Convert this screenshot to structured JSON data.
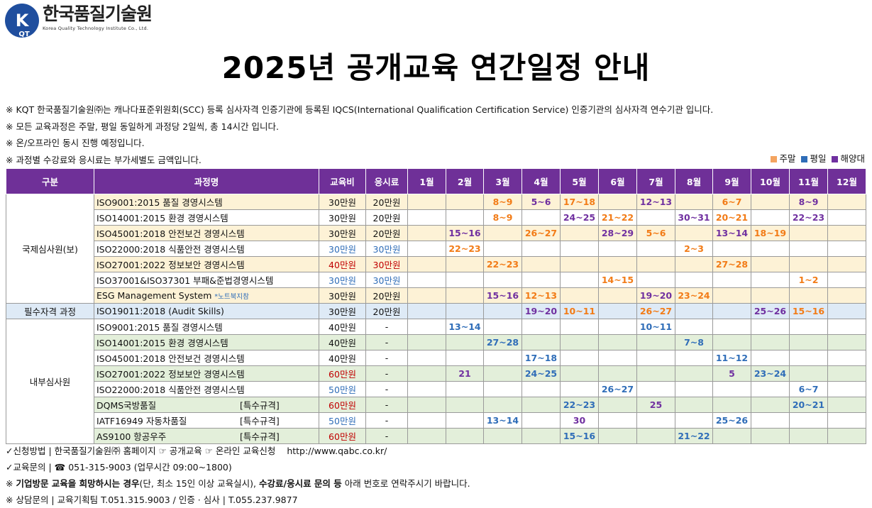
{
  "header": {
    "logo_letters": "KQT",
    "logo_ko": "한국품질기술원",
    "logo_en": "Korea Quality Technology Institute Co., Ltd.",
    "title": "2025년 공개교육 연간일정 안내"
  },
  "notes": [
    "※ KQT 한국품질기술원㈜는 캐나다표준위원회(SCC) 등록 심사자격 인증기관에 등록된 IQCS(International Qualification Certification Service) 인증기관의 심사자격 연수기관 입니다.",
    "※ 모든 교육과정은 주말, 평일 동일하게 과정당 2일씩, 총 14시간 입니다.",
    "※ 온/오프라인 동시 진행 예정입니다.",
    "※ 과정별 수강료와 응시료는 부가세별도 금액입니다."
  ],
  "legend": {
    "weekend": "주말",
    "weekday": "평일",
    "overseas": "해양대",
    "weekend_color": "#f4a460",
    "weekday_color": "#2f6db8",
    "overseas_color": "#7030a0"
  },
  "table": {
    "headers": [
      "구분",
      "과정명",
      "교육비",
      "응시료",
      "1월",
      "2월",
      "3월",
      "4월",
      "5월",
      "6월",
      "7월",
      "8월",
      "9월",
      "10월",
      "11월",
      "12월"
    ],
    "categories": {
      "intl": "국제심사원(보)",
      "req": "필수자격 과정",
      "internal": "내부심사원"
    },
    "rows": [
      {
        "course": "ISO9001:2015 품질 경영시스템",
        "fee": "30만원",
        "exam": "20만원",
        "months": [
          "",
          "",
          "8~9",
          "5~6",
          "17~18",
          "",
          "12~13",
          "",
          "6~7",
          "",
          "8~9",
          ""
        ],
        "styles": [
          "",
          "",
          "we",
          "ov",
          "we",
          "",
          "ov",
          "",
          "we",
          "",
          "ov",
          ""
        ]
      },
      {
        "course": "ISO14001:2015 환경 경영시스템",
        "fee": "30만원",
        "exam": "20만원",
        "months": [
          "",
          "",
          "8~9",
          "",
          "24~25",
          "21~22",
          "",
          "30~31",
          "20~21",
          "",
          "22~23",
          ""
        ],
        "styles": [
          "",
          "",
          "we",
          "",
          "ov",
          "we",
          "",
          "ov",
          "we",
          "",
          "ov",
          ""
        ]
      },
      {
        "course": "ISO45001:2018 안전보건 경영시스템",
        "fee": "30만원",
        "exam": "20만원",
        "months": [
          "",
          "15~16",
          "",
          "26~27",
          "",
          "28~29",
          "5~6",
          "",
          "13~14",
          "18~19",
          "",
          ""
        ],
        "styles": [
          "",
          "ov",
          "",
          "we",
          "",
          "ov",
          "we",
          "",
          "ov",
          "we",
          "",
          ""
        ]
      },
      {
        "course": "ISO22000:2018 식품안전 경영시스템",
        "fee": "30만원",
        "exam": "30만원",
        "months": [
          "",
          "22~23",
          "",
          "",
          "",
          "",
          "",
          "2~3",
          "",
          "",
          "",
          ""
        ],
        "styles": [
          "",
          "we",
          "",
          "",
          "",
          "",
          "",
          "we",
          "",
          "",
          "",
          ""
        ]
      },
      {
        "course": "ISO27001:2022 정보보안 경영시스템",
        "fee": "40만원",
        "exam": "30만원",
        "months": [
          "",
          "",
          "22~23",
          "",
          "",
          "",
          "",
          "",
          "27~28",
          "",
          "",
          ""
        ],
        "styles": [
          "",
          "",
          "we",
          "",
          "",
          "",
          "",
          "",
          "we",
          "",
          "",
          ""
        ]
      },
      {
        "course": "ISO37001&ISO37301 부패&준법경영시스템",
        "fee": "30만원",
        "exam": "30만원",
        "months": [
          "",
          "",
          "",
          "",
          "",
          "14~15",
          "",
          "",
          "",
          "",
          "1~2",
          ""
        ],
        "styles": [
          "",
          "",
          "",
          "",
          "",
          "we",
          "",
          "",
          "",
          "",
          "we",
          ""
        ]
      },
      {
        "course": "ESG Management System",
        "course_note": "*노트북지참",
        "fee": "30만원",
        "exam": "20만원",
        "months": [
          "",
          "",
          "15~16",
          "12~13",
          "",
          "",
          "19~20",
          "23~24",
          "",
          "",
          "",
          ""
        ],
        "styles": [
          "",
          "",
          "ov",
          "we",
          "",
          "",
          "ov",
          "we",
          "",
          "",
          "",
          ""
        ]
      },
      {
        "course": "ISO19011:2018 (Audit Skills)",
        "fee": "30만원",
        "exam": "20만원",
        "months": [
          "",
          "",
          "",
          "19~20",
          "10~11",
          "",
          "26~27",
          "",
          "",
          "25~26",
          "15~16",
          ""
        ],
        "styles": [
          "",
          "",
          "",
          "ov",
          "we",
          "",
          "we",
          "",
          "",
          "ov",
          "we",
          ""
        ]
      },
      {
        "course": "ISO9001:2015 품질 경영시스템",
        "fee": "40만원",
        "exam": "-",
        "months": [
          "",
          "13~14",
          "",
          "",
          "",
          "",
          "10~11",
          "",
          "",
          "",
          "",
          ""
        ],
        "styles": [
          "",
          "wd",
          "",
          "",
          "",
          "",
          "wd",
          "",
          "",
          "",
          "",
          ""
        ]
      },
      {
        "course": "ISO14001:2015 환경 경영시스템",
        "fee": "40만원",
        "exam": "-",
        "months": [
          "",
          "",
          "27~28",
          "",
          "",
          "",
          "",
          "7~8",
          "",
          "",
          "",
          ""
        ],
        "styles": [
          "",
          "",
          "wd",
          "",
          "",
          "",
          "",
          "wd",
          "",
          "",
          "",
          ""
        ]
      },
      {
        "course": "ISO45001:2018 안전보건 경영시스템",
        "fee": "40만원",
        "exam": "-",
        "months": [
          "",
          "",
          "",
          "17~18",
          "",
          "",
          "",
          "",
          "11~12",
          "",
          "",
          ""
        ],
        "styles": [
          "",
          "",
          "",
          "wd",
          "",
          "",
          "",
          "",
          "wd",
          "",
          "",
          ""
        ]
      },
      {
        "course": "ISO27001:2022 정보보안 경영시스템",
        "fee": "60만원",
        "exam": "-",
        "months": [
          "",
          "21",
          "",
          "24~25",
          "",
          "",
          "",
          "",
          "5",
          "23~24",
          "",
          ""
        ],
        "styles": [
          "",
          "ov",
          "",
          "wd",
          "",
          "",
          "",
          "",
          "ov",
          "wd",
          "",
          ""
        ]
      },
      {
        "course": "ISO22000:2018 식품안전 경영시스템",
        "fee": "50만원",
        "exam": "-",
        "months": [
          "",
          "",
          "",
          "",
          "",
          "26~27",
          "",
          "",
          "",
          "",
          "6~7",
          ""
        ],
        "styles": [
          "",
          "",
          "",
          "",
          "",
          "wd",
          "",
          "",
          "",
          "",
          "wd",
          ""
        ]
      },
      {
        "course": "DQMS국방품질",
        "course_tag": "[특수규격]",
        "fee": "60만원",
        "exam": "-",
        "months": [
          "",
          "",
          "",
          "",
          "22~23",
          "",
          "25",
          "",
          "",
          "",
          "20~21",
          ""
        ],
        "styles": [
          "",
          "",
          "",
          "",
          "wd",
          "",
          "ov",
          "",
          "",
          "",
          "wd",
          ""
        ]
      },
      {
        "course": "IATF16949 자동차품질",
        "course_tag": "[특수규격]",
        "fee": "50만원",
        "exam": "-",
        "months": [
          "",
          "",
          "13~14",
          "",
          "30",
          "",
          "",
          "",
          "25~26",
          "",
          "",
          ""
        ],
        "styles": [
          "",
          "",
          "wd",
          "",
          "ov",
          "",
          "",
          "",
          "wd",
          "",
          "",
          ""
        ]
      },
      {
        "course": "AS9100 항공우주",
        "course_tag": "[특수규격]",
        "fee": "60만원",
        "exam": "-",
        "months": [
          "",
          "",
          "",
          "",
          "15~16",
          "",
          "",
          "21~22",
          "",
          "",
          "",
          ""
        ],
        "styles": [
          "",
          "",
          "",
          "",
          "wd",
          "",
          "",
          "wd",
          "",
          "",
          "",
          ""
        ]
      }
    ]
  },
  "footer": {
    "apply_label": "✓신청방법",
    "apply_text": "한국품질기술원㈜ 홈페이지 ☞ 공개교육 ☞ 온라인 교육신청",
    "apply_url": "http://www.qabc.co.kr/",
    "inquiry_label": "✓교육문의",
    "inquiry_text": "☎ 051-315-9003 (업무시간 09:00~1800)",
    "company_note_prefix": "※ ",
    "company_note_bold1": "기업방문 교육을 희망하시는 경우",
    "company_note_mid": "(단, 최소 15인 이상 교육실시), ",
    "company_note_bold2": "수강료/응시료 문의 등",
    "company_note_end": " 아래 번호로 연락주시기 바랍니다.",
    "contact": "※ 상담문의 | 교육기획팀  T.051.315.9003 / 인증 · 심사  |  T.055.237.9877"
  }
}
